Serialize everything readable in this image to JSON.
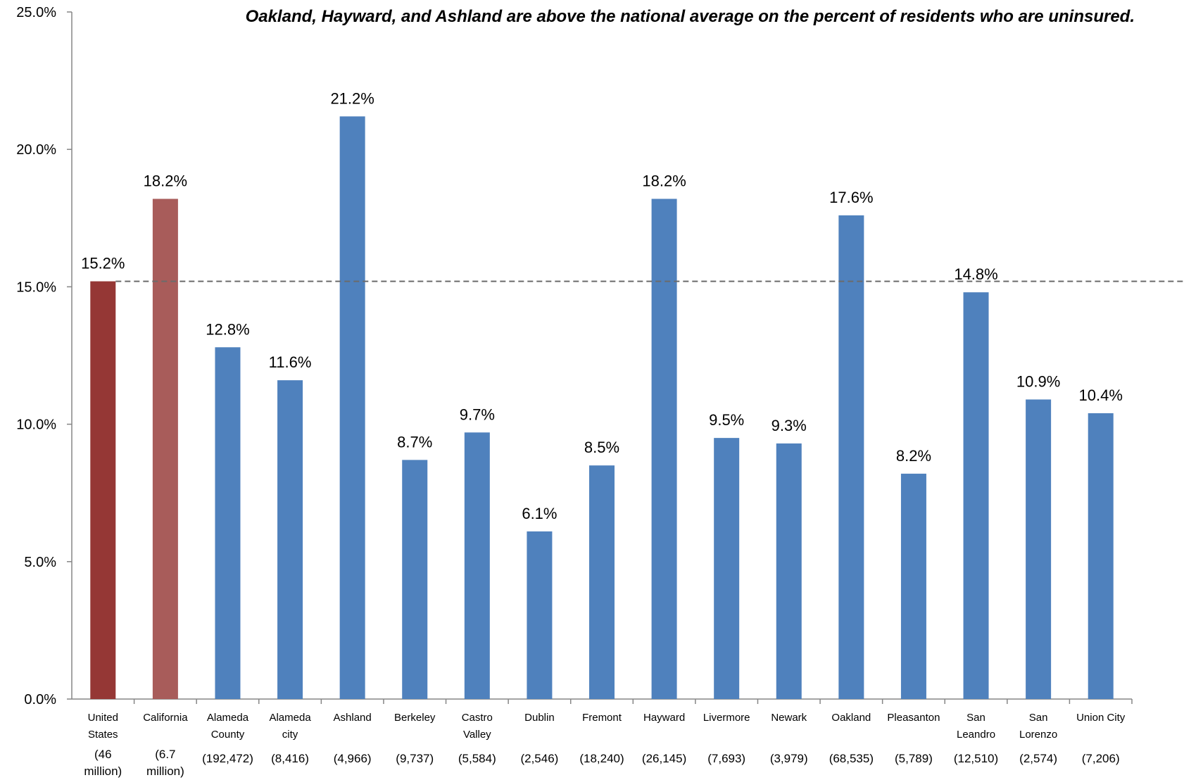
{
  "chart_data": {
    "type": "bar",
    "title": "Oakland, Hayward, and Ashland are above the national average on the percent of residents who are uninsured.",
    "xlabel": "",
    "ylabel": "",
    "ylim": [
      0,
      25
    ],
    "yticks": [
      "0.0%",
      "5.0%",
      "10.0%",
      "15.0%",
      "20.0%",
      "25.0%"
    ],
    "grid": false,
    "legend": "none",
    "reference_line": {
      "value": 15.2,
      "style": "dashed"
    },
    "categories": [
      {
        "label": [
          "United",
          "States"
        ],
        "population": [
          "(46",
          "million)"
        ],
        "value": 15.2,
        "value_label": "15.2%",
        "color": "#953735"
      },
      {
        "label": [
          "California"
        ],
        "population": [
          "(6.7",
          "million)"
        ],
        "value": 18.2,
        "value_label": "18.2%",
        "color": "#A85C5A"
      },
      {
        "label": [
          "Alameda",
          "County"
        ],
        "population": [
          "(192,472)"
        ],
        "value": 12.8,
        "value_label": "12.8%",
        "color": "#4F81BD"
      },
      {
        "label": [
          "Alameda",
          "city"
        ],
        "population": [
          "(8,416)"
        ],
        "value": 11.6,
        "value_label": "11.6%",
        "color": "#4F81BD"
      },
      {
        "label": [
          "Ashland"
        ],
        "population": [
          "(4,966)"
        ],
        "value": 21.2,
        "value_label": "21.2%",
        "color": "#4F81BD"
      },
      {
        "label": [
          "Berkeley"
        ],
        "population": [
          "(9,737)"
        ],
        "value": 8.7,
        "value_label": "8.7%",
        "color": "#4F81BD"
      },
      {
        "label": [
          "Castro",
          "Valley"
        ],
        "population": [
          "(5,584)"
        ],
        "value": 9.7,
        "value_label": "9.7%",
        "color": "#4F81BD"
      },
      {
        "label": [
          "Dublin"
        ],
        "population": [
          "(2,546)"
        ],
        "value": 6.1,
        "value_label": "6.1%",
        "color": "#4F81BD"
      },
      {
        "label": [
          "Fremont"
        ],
        "population": [
          "(18,240)"
        ],
        "value": 8.5,
        "value_label": "8.5%",
        "color": "#4F81BD"
      },
      {
        "label": [
          "Hayward"
        ],
        "population": [
          "(26,145)"
        ],
        "value": 18.2,
        "value_label": "18.2%",
        "color": "#4F81BD"
      },
      {
        "label": [
          "Livermore"
        ],
        "population": [
          "(7,693)"
        ],
        "value": 9.5,
        "value_label": "9.5%",
        "color": "#4F81BD"
      },
      {
        "label": [
          "Newark"
        ],
        "population": [
          "(3,979)"
        ],
        "value": 9.3,
        "value_label": "9.3%",
        "color": "#4F81BD"
      },
      {
        "label": [
          "Oakland"
        ],
        "population": [
          "(68,535)"
        ],
        "value": 17.6,
        "value_label": "17.6%",
        "color": "#4F81BD"
      },
      {
        "label": [
          "Pleasanton"
        ],
        "population": [
          "(5,789)"
        ],
        "value": 8.2,
        "value_label": "8.2%",
        "color": "#4F81BD"
      },
      {
        "label": [
          "San",
          "Leandro"
        ],
        "population": [
          "(12,510)"
        ],
        "value": 14.8,
        "value_label": "14.8%",
        "color": "#4F81BD"
      },
      {
        "label": [
          "San",
          "Lorenzo"
        ],
        "population": [
          "(2,574)"
        ],
        "value": 10.9,
        "value_label": "10.9%",
        "color": "#4F81BD"
      },
      {
        "label": [
          "Union City"
        ],
        "population": [
          "(7,206)"
        ],
        "value": 10.4,
        "value_label": "10.4%",
        "color": "#4F81BD"
      }
    ]
  }
}
